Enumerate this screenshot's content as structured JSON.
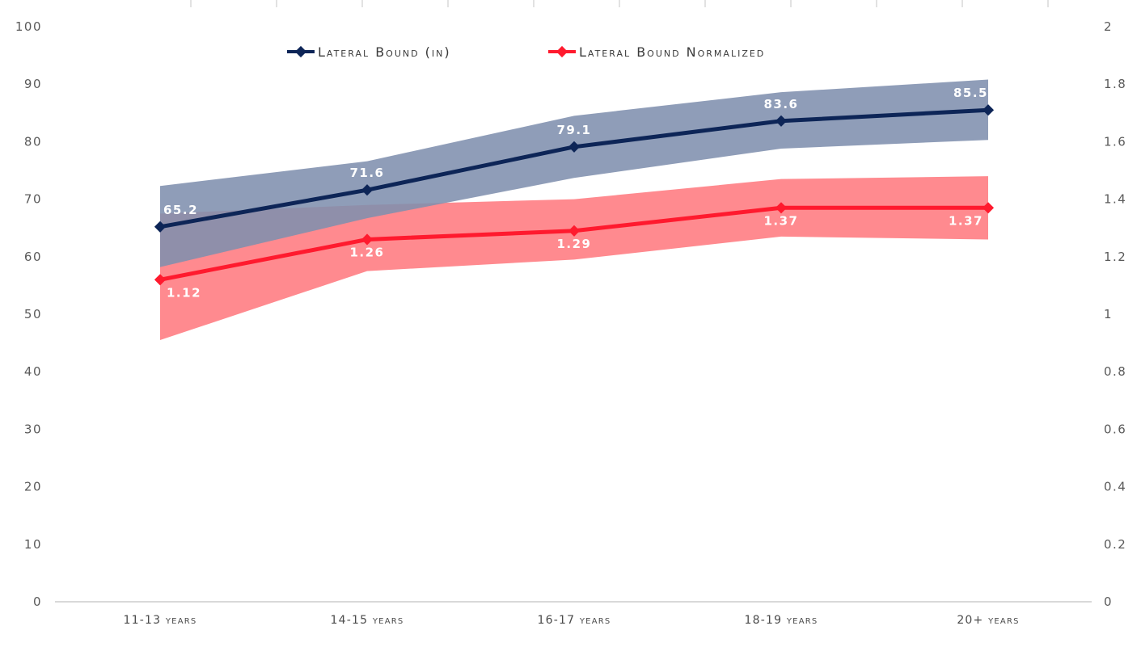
{
  "chart_data": {
    "type": "line",
    "title": "",
    "categories": [
      "11-13 years",
      "14-15 years",
      "16-17 years",
      "18-19 years",
      "20+ years"
    ],
    "y_left": {
      "min": 0,
      "max": 100,
      "step": 10,
      "ticks": [
        "0",
        "10",
        "20",
        "30",
        "40",
        "50",
        "60",
        "70",
        "80",
        "90",
        "100"
      ]
    },
    "y_right": {
      "min": 0,
      "max": 2,
      "step": 0.2,
      "ticks": [
        "0",
        "0.2",
        "0.4",
        "0.6",
        "0.8",
        "1",
        "1.2",
        "1.4",
        "1.6",
        "1.8",
        "2"
      ]
    },
    "legend_position": "top-center",
    "series": [
      {
        "name": "Lateral Bound (in)",
        "axis": "left",
        "color": "#0d2557",
        "band_color": "#7f8fae",
        "values": [
          65.2,
          71.6,
          79.1,
          83.6,
          85.5
        ],
        "labels": [
          "65.2",
          "71.6",
          "79.1",
          "83.6",
          "85.5"
        ],
        "band_upper": [
          72.3,
          76.6,
          84.5,
          88.6,
          90.8
        ],
        "band_lower": [
          58.2,
          66.7,
          73.7,
          78.8,
          80.3
        ]
      },
      {
        "name": "Lateral Bound Normalized",
        "axis": "right",
        "color": "#ff1a2e",
        "band_color": "#ff8a8f",
        "values": [
          1.12,
          1.26,
          1.29,
          1.37,
          1.37
        ],
        "labels": [
          "1.12",
          "1.26",
          "1.29",
          "1.37",
          "1.37"
        ],
        "band_upper": [
          1.35,
          1.38,
          1.4,
          1.47,
          1.48
        ],
        "band_lower": [
          0.91,
          1.15,
          1.19,
          1.27,
          1.26
        ]
      }
    ]
  }
}
